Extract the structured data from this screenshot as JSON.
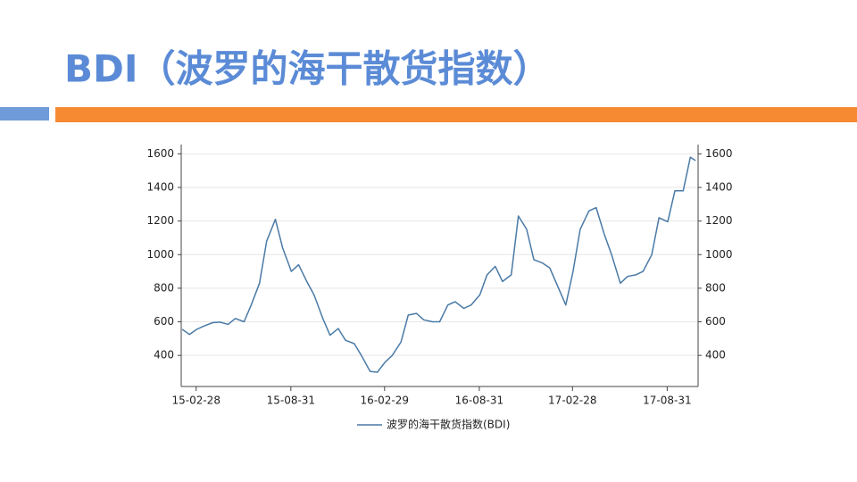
{
  "header": {
    "title": "BDI（波罗的海干散货指数）"
  },
  "chart_data": {
    "type": "line",
    "x": [
      "15-02-01",
      "15-02-15",
      "15-03-01",
      "15-03-15",
      "15-04-01",
      "15-04-15",
      "15-05-01",
      "15-05-15",
      "15-06-01",
      "15-06-15",
      "15-07-01",
      "15-07-15",
      "15-08-01",
      "15-08-15",
      "15-09-01",
      "15-09-15",
      "15-10-01",
      "15-10-15",
      "15-11-01",
      "15-11-15",
      "15-12-01",
      "15-12-15",
      "16-01-01",
      "16-01-15",
      "16-02-01",
      "16-02-15",
      "16-03-01",
      "16-03-15",
      "16-04-01",
      "16-04-15",
      "16-05-01",
      "16-05-15",
      "16-06-01",
      "16-06-15",
      "16-07-01",
      "16-07-15",
      "16-08-01",
      "16-08-15",
      "16-09-01",
      "16-09-15",
      "16-10-01",
      "16-10-15",
      "16-11-01",
      "16-11-15",
      "16-12-01",
      "16-12-15",
      "17-01-01",
      "17-01-15",
      "17-02-01",
      "17-02-15",
      "17-03-01",
      "17-03-15",
      "17-04-01",
      "17-04-15",
      "17-05-01",
      "17-05-15",
      "17-06-01",
      "17-06-15",
      "17-07-01",
      "17-07-15",
      "17-08-01",
      "17-08-15",
      "17-09-01",
      "17-09-15",
      "17-10-01",
      "17-10-15",
      "17-10-25"
    ],
    "series": [
      {
        "name": "波罗的海干散货指数(BDI)",
        "color": "#4a7aa6",
        "values": [
          555,
          525,
          555,
          575,
          595,
          598,
          585,
          620,
          600,
          700,
          830,
          1080,
          1210,
          1040,
          900,
          940,
          840,
          760,
          620,
          520,
          560,
          490,
          470,
          400,
          305,
          300,
          360,
          400,
          480,
          640,
          650,
          612,
          600,
          600,
          700,
          720,
          680,
          700,
          760,
          880,
          930,
          840,
          880,
          1230,
          1150,
          970,
          950,
          920,
          800,
          700,
          900,
          1150,
          1260,
          1280,
          1120,
          1000,
          830,
          870,
          880,
          900,
          1000,
          1220,
          1196,
          1380,
          1380,
          1580,
          1560
        ]
      }
    ],
    "xlim": [
      "15-01-30",
      "17-10-30"
    ],
    "xticks": [
      "15-02-28",
      "15-08-31",
      "16-02-29",
      "16-08-31",
      "17-02-28",
      "17-08-31"
    ],
    "ylim": [
      215,
      1655
    ],
    "yticks": [
      400,
      600,
      800,
      1000,
      1200,
      1400,
      1600
    ],
    "y2lim": [
      215,
      1655
    ],
    "y2ticks": [
      400,
      600,
      800,
      1000,
      1200,
      1400,
      1600
    ],
    "grid": true
  }
}
